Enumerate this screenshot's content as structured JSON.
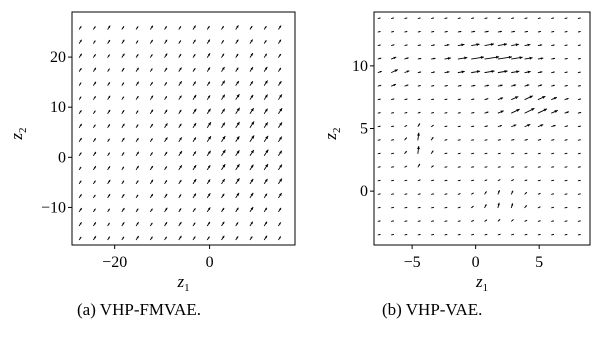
{
  "chart_data": [
    {
      "type": "quiver",
      "caption": "(a) VHP-FMVAE.",
      "xlabel": "z",
      "xlabel_sub": "1",
      "ylabel": "z",
      "ylabel_sub": "2",
      "xlim": [
        -29,
        18
      ],
      "ylim": [
        -17.5,
        29
      ],
      "xticks": [
        -20,
        0
      ],
      "xtick_labels": [
        "−20",
        "0"
      ],
      "yticks": [
        -10,
        0,
        10,
        20
      ],
      "ytick_labels": [
        "−10",
        "0",
        "10",
        "20"
      ],
      "grid": false,
      "field": {
        "x_start": -27.5,
        "x_step": 3.0,
        "x_count": 15,
        "y_start": -16.5,
        "y_step": 2.8,
        "y_count": 16,
        "description": "uniform field of short arrows pointing up-right; slightly longer near (8, 3)"
      }
    },
    {
      "type": "quiver",
      "caption": "(b) VHP-VAE.",
      "xlabel": "z",
      "xlabel_sub": "1",
      "ylabel": "z",
      "ylabel_sub": "2",
      "xlim": [
        -8,
        9
      ],
      "ylim": [
        -4.3,
        14.3
      ],
      "xticks": [
        -5,
        0,
        5
      ],
      "xtick_labels": [
        "−5",
        "0",
        "5"
      ],
      "yticks": [
        0,
        5,
        10
      ],
      "ytick_labels": [
        "0",
        "5",
        "10"
      ],
      "grid": false,
      "field": {
        "x_start": -7.7,
        "x_step": 1.05,
        "x_count": 17,
        "y_start": -3.5,
        "y_step": 1.08,
        "y_count": 17,
        "description": "mostly rightward arrows, long arrows around (1, 10.5) and (4, 6.5), near-vertical arrows near (-4.5, 4) and (2, -1)"
      }
    }
  ]
}
